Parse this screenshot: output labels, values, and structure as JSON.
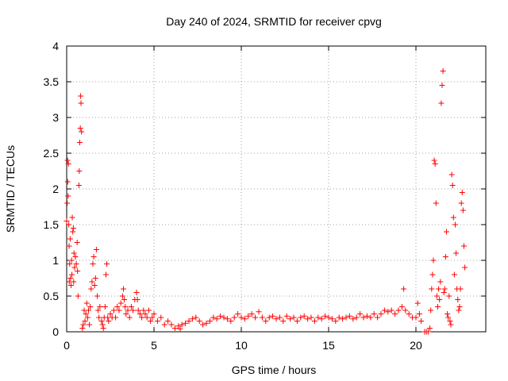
{
  "chart_data": {
    "type": "scatter",
    "title": "Day 240 of 2024, SRMTID for receiver cpvg",
    "xlabel": "GPS time / hours",
    "ylabel": "SRMTID / TECUs",
    "xlim": [
      0,
      24
    ],
    "ylim": [
      0,
      4
    ],
    "xticks": [
      0,
      5,
      10,
      15,
      20
    ],
    "xtick_labels": [
      "0",
      "5",
      "10",
      "15",
      "20"
    ],
    "yticks": [
      0,
      0.5,
      1,
      1.5,
      2,
      2.5,
      3,
      3.5,
      4
    ],
    "ytick_labels": [
      "0",
      "0.5",
      "1",
      "1.5",
      "2",
      "2.5",
      "3",
      "3.5",
      "4"
    ],
    "grid": true,
    "marker": "+",
    "series": [
      {
        "name": "SRMTID",
        "color": "#ff0000",
        "points": [
          [
            0.0,
            1.55
          ],
          [
            0.03,
            1.8
          ],
          [
            0.05,
            2.4
          ],
          [
            0.06,
            2.1
          ],
          [
            0.08,
            1.9
          ],
          [
            0.1,
            2.35
          ],
          [
            0.12,
            1.5
          ],
          [
            0.14,
            1.2
          ],
          [
            0.15,
            0.7
          ],
          [
            0.17,
            0.95
          ],
          [
            0.2,
            1.3
          ],
          [
            0.22,
            0.75
          ],
          [
            0.25,
            0.65
          ],
          [
            0.28,
            1.0
          ],
          [
            0.3,
            0.8
          ],
          [
            0.32,
            1.6
          ],
          [
            0.35,
            1.4
          ],
          [
            0.38,
            1.45
          ],
          [
            0.4,
            0.7
          ],
          [
            0.42,
            1.1
          ],
          [
            0.45,
            0.9
          ],
          [
            0.5,
            1.05
          ],
          [
            0.55,
            0.95
          ],
          [
            0.6,
            1.25
          ],
          [
            0.62,
            0.85
          ],
          [
            0.65,
            0.5
          ],
          [
            0.7,
            2.05
          ],
          [
            0.72,
            2.25
          ],
          [
            0.75,
            2.65
          ],
          [
            0.78,
            2.85
          ],
          [
            0.8,
            3.3
          ],
          [
            0.82,
            3.2
          ],
          [
            0.85,
            2.8
          ],
          [
            0.9,
            0.05
          ],
          [
            0.95,
            0.1
          ],
          [
            1.0,
            0.3
          ],
          [
            1.05,
            0.15
          ],
          [
            1.1,
            0.25
          ],
          [
            1.15,
            0.4
          ],
          [
            1.2,
            0.2
          ],
          [
            1.25,
            0.3
          ],
          [
            1.3,
            0.1
          ],
          [
            1.35,
            0.35
          ],
          [
            1.4,
            0.6
          ],
          [
            1.45,
            0.7
          ],
          [
            1.5,
            0.95
          ],
          [
            1.55,
            1.05
          ],
          [
            1.6,
            0.65
          ],
          [
            1.65,
            0.75
          ],
          [
            1.7,
            1.15
          ],
          [
            1.75,
            0.5
          ],
          [
            1.8,
            0.3
          ],
          [
            1.85,
            0.2
          ],
          [
            1.9,
            0.35
          ],
          [
            2.0,
            0.15
          ],
          [
            2.05,
            0.1
          ],
          [
            2.1,
            0.05
          ],
          [
            2.15,
            0.2
          ],
          [
            2.2,
            0.35
          ],
          [
            2.25,
            0.8
          ],
          [
            2.3,
            0.95
          ],
          [
            2.35,
            0.2
          ],
          [
            2.4,
            0.15
          ],
          [
            2.5,
            0.25
          ],
          [
            2.6,
            0.2
          ],
          [
            2.7,
            0.3
          ],
          [
            2.8,
            0.2
          ],
          [
            2.9,
            0.35
          ],
          [
            3.0,
            0.3
          ],
          [
            3.1,
            0.4
          ],
          [
            3.2,
            0.5
          ],
          [
            3.25,
            0.6
          ],
          [
            3.3,
            0.45
          ],
          [
            3.35,
            0.35
          ],
          [
            3.4,
            0.25
          ],
          [
            3.5,
            0.3
          ],
          [
            3.6,
            0.2
          ],
          [
            3.7,
            0.35
          ],
          [
            3.8,
            0.3
          ],
          [
            3.9,
            0.45
          ],
          [
            4.0,
            0.55
          ],
          [
            4.05,
            0.45
          ],
          [
            4.1,
            0.3
          ],
          [
            4.2,
            0.25
          ],
          [
            4.3,
            0.2
          ],
          [
            4.4,
            0.3
          ],
          [
            4.5,
            0.25
          ],
          [
            4.6,
            0.2
          ],
          [
            4.7,
            0.3
          ],
          [
            4.8,
            0.15
          ],
          [
            4.9,
            0.2
          ],
          [
            5.0,
            0.25
          ],
          [
            5.2,
            0.15
          ],
          [
            5.4,
            0.2
          ],
          [
            5.6,
            0.1
          ],
          [
            5.8,
            0.15
          ],
          [
            6.0,
            0.1
          ],
          [
            6.2,
            0.05
          ],
          [
            6.4,
            0.08
          ],
          [
            6.5,
            0.04
          ],
          [
            6.6,
            0.1
          ],
          [
            6.8,
            0.12
          ],
          [
            7.0,
            0.15
          ],
          [
            7.2,
            0.18
          ],
          [
            7.4,
            0.2
          ],
          [
            7.6,
            0.15
          ],
          [
            7.8,
            0.1
          ],
          [
            8.0,
            0.12
          ],
          [
            8.2,
            0.15
          ],
          [
            8.4,
            0.2
          ],
          [
            8.6,
            0.18
          ],
          [
            8.8,
            0.22
          ],
          [
            9.0,
            0.2
          ],
          [
            9.2,
            0.18
          ],
          [
            9.4,
            0.15
          ],
          [
            9.6,
            0.2
          ],
          [
            9.8,
            0.25
          ],
          [
            10.0,
            0.2
          ],
          [
            10.2,
            0.18
          ],
          [
            10.4,
            0.22
          ],
          [
            10.6,
            0.25
          ],
          [
            10.8,
            0.2
          ],
          [
            11.0,
            0.28
          ],
          [
            11.2,
            0.2
          ],
          [
            11.4,
            0.15
          ],
          [
            11.6,
            0.2
          ],
          [
            11.8,
            0.22
          ],
          [
            12.0,
            0.18
          ],
          [
            12.2,
            0.2
          ],
          [
            12.4,
            0.15
          ],
          [
            12.6,
            0.22
          ],
          [
            12.8,
            0.18
          ],
          [
            13.0,
            0.2
          ],
          [
            13.2,
            0.15
          ],
          [
            13.4,
            0.2
          ],
          [
            13.6,
            0.22
          ],
          [
            13.8,
            0.18
          ],
          [
            14.0,
            0.2
          ],
          [
            14.2,
            0.15
          ],
          [
            14.4,
            0.2
          ],
          [
            14.6,
            0.18
          ],
          [
            14.8,
            0.22
          ],
          [
            15.0,
            0.2
          ],
          [
            15.2,
            0.18
          ],
          [
            15.4,
            0.15
          ],
          [
            15.6,
            0.2
          ],
          [
            15.8,
            0.18
          ],
          [
            16.0,
            0.2
          ],
          [
            16.2,
            0.22
          ],
          [
            16.4,
            0.18
          ],
          [
            16.6,
            0.2
          ],
          [
            16.8,
            0.25
          ],
          [
            17.0,
            0.2
          ],
          [
            17.2,
            0.22
          ],
          [
            17.4,
            0.2
          ],
          [
            17.6,
            0.25
          ],
          [
            17.8,
            0.2
          ],
          [
            18.0,
            0.25
          ],
          [
            18.2,
            0.3
          ],
          [
            18.4,
            0.28
          ],
          [
            18.6,
            0.3
          ],
          [
            18.8,
            0.25
          ],
          [
            19.0,
            0.3
          ],
          [
            19.2,
            0.35
          ],
          [
            19.3,
            0.6
          ],
          [
            19.4,
            0.3
          ],
          [
            19.6,
            0.25
          ],
          [
            19.8,
            0.2
          ],
          [
            20.0,
            0.2
          ],
          [
            20.1,
            0.4
          ],
          [
            20.2,
            0.25
          ],
          [
            20.3,
            0.15
          ],
          [
            20.5,
            0.0
          ],
          [
            20.6,
            0.0
          ],
          [
            20.7,
            0.0
          ],
          [
            20.8,
            0.05
          ],
          [
            20.85,
            0.3
          ],
          [
            20.9,
            0.6
          ],
          [
            20.95,
            0.8
          ],
          [
            21.0,
            1.0
          ],
          [
            21.05,
            2.4
          ],
          [
            21.1,
            2.35
          ],
          [
            21.15,
            1.8
          ],
          [
            21.2,
            0.5
          ],
          [
            21.25,
            0.35
          ],
          [
            21.3,
            0.6
          ],
          [
            21.35,
            0.45
          ],
          [
            21.4,
            0.7
          ],
          [
            21.45,
            3.2
          ],
          [
            21.5,
            3.45
          ],
          [
            21.55,
            3.65
          ],
          [
            21.6,
            0.55
          ],
          [
            21.65,
            0.6
          ],
          [
            21.7,
            1.05
          ],
          [
            21.75,
            1.4
          ],
          [
            21.8,
            0.25
          ],
          [
            21.85,
            0.2
          ],
          [
            21.9,
            0.5
          ],
          [
            21.95,
            0.15
          ],
          [
            22.0,
            0.1
          ],
          [
            22.05,
            2.2
          ],
          [
            22.1,
            2.05
          ],
          [
            22.15,
            1.6
          ],
          [
            22.2,
            0.8
          ],
          [
            22.25,
            1.5
          ],
          [
            22.3,
            1.1
          ],
          [
            22.35,
            0.6
          ],
          [
            22.4,
            0.45
          ],
          [
            22.45,
            0.3
          ],
          [
            22.5,
            0.35
          ],
          [
            22.55,
            0.6
          ],
          [
            22.6,
            1.8
          ],
          [
            22.65,
            1.95
          ],
          [
            22.7,
            1.7
          ],
          [
            22.75,
            1.2
          ],
          [
            22.8,
            0.9
          ]
        ]
      }
    ]
  }
}
